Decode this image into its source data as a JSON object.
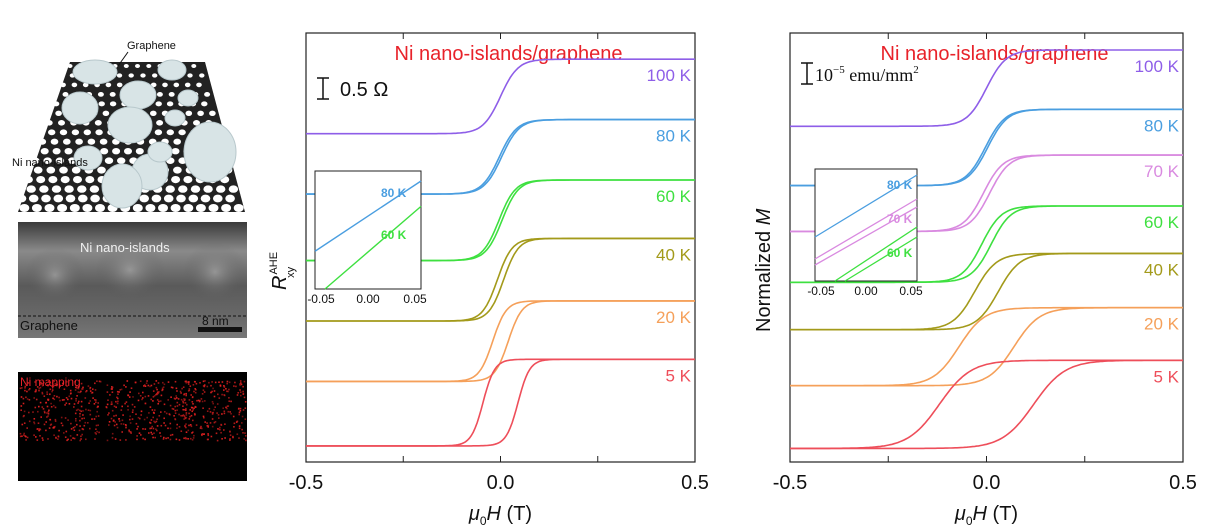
{
  "colors": {
    "red_title": "#e8222a",
    "c100": "#8e5ee8",
    "c80": "#4a9ee0",
    "c70": "#d98ae0",
    "c60": "#3ee040",
    "c40": "#a39a1a",
    "c20": "#f5a05a",
    "c5": "#ee4e5a"
  },
  "left_panels": {
    "schematic": {
      "graphene_label": "Graphene",
      "islands_label": "Ni nano-islands"
    },
    "tem": {
      "islands_label": "Ni nano-islands",
      "graphene_label": "Graphene",
      "scale_label": "8 nm"
    },
    "mapping": {
      "label": "Ni mapping"
    }
  },
  "chart_data": [
    {
      "type": "line",
      "title": "Ni nano-islands/graphene",
      "xlabel_mu": "μ",
      "xlabel_sub": "0",
      "xlabel_H": "H",
      "xlabel_unit": " (T)",
      "ylabel_main": "R",
      "ylabel_sup": "AHE",
      "ylabel_sub": "xy",
      "scale_bar": "0.5 Ω",
      "xlim": [
        -0.5,
        0.5
      ],
      "xticks": [
        "-0.5",
        "0.0",
        "0.5"
      ],
      "series": [
        {
          "name": "100 K",
          "level_low": 1.55,
          "level_high": 1.92,
          "width": 0.045,
          "loop": 0.0
        },
        {
          "name": "80 K",
          "level_low": 1.25,
          "level_high": 1.62,
          "width": 0.045,
          "loop": 0.003
        },
        {
          "name": "60 K",
          "level_low": 0.92,
          "level_high": 1.32,
          "width": 0.042,
          "loop": 0.004
        },
        {
          "name": "40 K",
          "level_low": 0.62,
          "level_high": 1.03,
          "width": 0.038,
          "loop": 0.008
        },
        {
          "name": "20 K",
          "level_low": 0.32,
          "level_high": 0.72,
          "width": 0.035,
          "loop": 0.02
        },
        {
          "name": "5 K",
          "level_low": 0.0,
          "level_high": 0.43,
          "width": 0.03,
          "loop": 0.045
        }
      ],
      "inset": {
        "xticks": [
          "-0.05",
          "0.00",
          "0.05"
        ],
        "labels": [
          "80 K",
          "60 K"
        ]
      }
    },
    {
      "type": "line",
      "title": "Ni nano-islands/graphene",
      "xlabel_mu": "μ",
      "xlabel_sub": "0",
      "xlabel_H": "H",
      "xlabel_unit": " (T)",
      "ylabel_main": "Normalized ",
      "ylabel_M": "M",
      "scale_bar_base": "10",
      "scale_bar_exp": "−5",
      "scale_bar_unit": " emu/mm",
      "scale_bar_unit_exp": "2",
      "xlim": [
        -0.5,
        0.5
      ],
      "xticks": [
        "-0.5",
        "0.0",
        "0.5"
      ],
      "series": [
        {
          "name": "100 K",
          "level_low": 1.9,
          "level_high": 2.35,
          "width": 0.05,
          "loop": 0.0
        },
        {
          "name": "80 K",
          "level_low": 1.55,
          "level_high": 2.0,
          "width": 0.05,
          "loop": 0.003
        },
        {
          "name": "70 K",
          "level_low": 1.28,
          "level_high": 1.73,
          "width": 0.05,
          "loop": 0.008
        },
        {
          "name": "60 K",
          "level_low": 0.98,
          "level_high": 1.43,
          "width": 0.05,
          "loop": 0.012
        },
        {
          "name": "40 K",
          "level_low": 0.7,
          "level_high": 1.15,
          "width": 0.055,
          "loop": 0.03
        },
        {
          "name": "20 K",
          "level_low": 0.37,
          "level_high": 0.83,
          "width": 0.065,
          "loop": 0.07
        },
        {
          "name": "5 K",
          "level_low": 0.0,
          "level_high": 0.52,
          "width": 0.08,
          "loop": 0.12
        }
      ],
      "inset": {
        "xticks": [
          "-0.05",
          "0.00",
          "0.05"
        ],
        "labels": [
          "80 K",
          "70 K",
          "60 K"
        ]
      }
    }
  ]
}
